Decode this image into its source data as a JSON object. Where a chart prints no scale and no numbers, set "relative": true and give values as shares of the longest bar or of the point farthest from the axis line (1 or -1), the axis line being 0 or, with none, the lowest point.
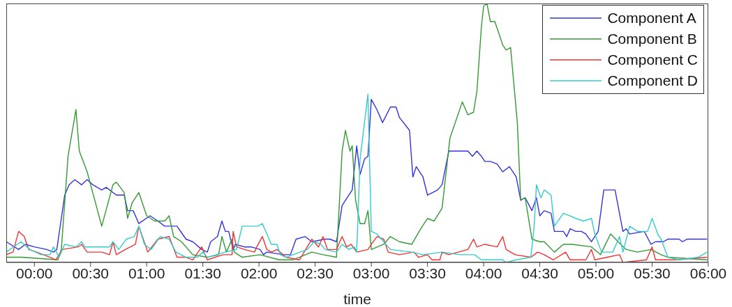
{
  "chart_data": {
    "type": "line",
    "relative": true,
    "xlabel": "time",
    "legend": "top right",
    "xlim": [
      -0.25,
      6
    ],
    "xticks": [
      {
        "value": 0,
        "label": "00:00"
      },
      {
        "value": 0.5,
        "label": "00:30"
      },
      {
        "value": 1,
        "label": "01:00"
      },
      {
        "value": 1.5,
        "label": "01:30"
      },
      {
        "value": 2,
        "label": "02:00"
      },
      {
        "value": 2.5,
        "label": "02:30"
      },
      {
        "value": 3,
        "label": "03:00"
      },
      {
        "value": 3.5,
        "label": "03:30"
      },
      {
        "value": 4,
        "label": "04:00"
      },
      {
        "value": 4.5,
        "label": "04:30"
      },
      {
        "value": 5,
        "label": "05:00"
      },
      {
        "value": 5.5,
        "label": "05:30"
      },
      {
        "value": 6,
        "label": "06:00"
      }
    ],
    "series": [
      {
        "name": "Component A",
        "color": "#3333dd",
        "x": [
          -0.25,
          -0.14,
          -0.08,
          0,
          0.11,
          0.17,
          0.2,
          0.27,
          0.31,
          0.36,
          0.42,
          0.47,
          0.52,
          0.6,
          0.64,
          0.73,
          0.8,
          0.83,
          0.88,
          0.93,
          1.03,
          1.1,
          1.16,
          1.23,
          1.27,
          1.35,
          1.41,
          1.49,
          1.54,
          1.57,
          1.63,
          1.67,
          1.7,
          1.73,
          1.77,
          1.79,
          1.87,
          1.93,
          2.01,
          2.04,
          2.07,
          2.22,
          2.28,
          2.33,
          2.41,
          2.47,
          2.59,
          2.63,
          2.69,
          2.74,
          2.83,
          2.87,
          2.9,
          2.94,
          2.97,
          3.0,
          3.05,
          3.1,
          3.17,
          3.22,
          3.25,
          3.34,
          3.37,
          3.4,
          3.46,
          3.5,
          3.59,
          3.63,
          3.69,
          3.77,
          3.86,
          3.9,
          3.94,
          3.98,
          4.01,
          4.06,
          4.12,
          4.17,
          4.23,
          4.29,
          4.33,
          4.37,
          4.43,
          4.47,
          4.5,
          4.54,
          4.6,
          4.63,
          4.71,
          4.74,
          4.77,
          4.82,
          4.87,
          4.91,
          4.96,
          5.02,
          5.07,
          5.17,
          5.24,
          5.27,
          5.3,
          5.43,
          5.49,
          5.53,
          5.6,
          5.64,
          5.74,
          5.77,
          5.81,
          5.99
        ],
        "values": [
          0.08,
          0.05,
          0.07,
          0.06,
          0.05,
          0.04,
          0.05,
          0.26,
          0.3,
          0.32,
          0.3,
          0.32,
          0.3,
          0.28,
          0.29,
          0.26,
          0.26,
          0.2,
          0.2,
          0.15,
          0.18,
          0.16,
          0.14,
          0.14,
          0.14,
          0.09,
          0.08,
          0.05,
          0.04,
          0.08,
          0.1,
          0.16,
          0.12,
          0.12,
          0.05,
          0.07,
          0.06,
          0.06,
          0.05,
          0.03,
          0.04,
          0.03,
          0.03,
          0.09,
          0.1,
          0.08,
          0.09,
          0.09,
          0.08,
          0.22,
          0.28,
          0.45,
          0.34,
          0.4,
          0.41,
          0.63,
          0.59,
          0.54,
          0.6,
          0.6,
          0.56,
          0.51,
          0.33,
          0.37,
          0.33,
          0.26,
          0.28,
          0.3,
          0.43,
          0.43,
          0.43,
          0.41,
          0.43,
          0.41,
          0.39,
          0.39,
          0.38,
          0.35,
          0.37,
          0.33,
          0.24,
          0.25,
          0.2,
          0.25,
          0.18,
          0.2,
          0.19,
          0.12,
          0.12,
          0.1,
          0.13,
          0.12,
          0.12,
          0.11,
          0.08,
          0.12,
          0.28,
          0.28,
          0.12,
          0.13,
          0.11,
          0.12,
          0.07,
          0.08,
          0.08,
          0.09,
          0.09,
          0.08,
          0.09,
          0.09
        ]
      },
      {
        "name": "Component B",
        "color": "#339933",
        "x": [
          -0.25,
          -0.11,
          0.21,
          0.24,
          0.3,
          0.37,
          0.4,
          0.47,
          0.6,
          0.7,
          0.73,
          0.8,
          0.83,
          0.87,
          0.93,
          1.0,
          1.07,
          1.16,
          1.2,
          1.24,
          1.31,
          1.41,
          1.54,
          1.64,
          1.67,
          1.71,
          1.76,
          1.78,
          1.85,
          2.01,
          2.18,
          2.3,
          2.36,
          2.47,
          2.57,
          2.69,
          2.74,
          2.77,
          2.81,
          2.83,
          2.86,
          2.9,
          2.94,
          2.97,
          3.0,
          3.11,
          3.17,
          3.25,
          3.36,
          3.44,
          3.5,
          3.56,
          3.63,
          3.7,
          3.81,
          3.86,
          3.91,
          3.94,
          3.98,
          4.0,
          4.03,
          4.06,
          4.1,
          4.17,
          4.2,
          4.24,
          4.3,
          4.33,
          4.37,
          4.43,
          4.5,
          4.54,
          4.63,
          4.71,
          4.79,
          4.96,
          5.04,
          5.13,
          5.22,
          5.27,
          5.37,
          5.49,
          5.58,
          5.64,
          5.99
        ],
        "values": [
          0.02,
          0.02,
          0.01,
          0.05,
          0.41,
          0.59,
          0.43,
          0.35,
          0.14,
          0.3,
          0.31,
          0.27,
          0.17,
          0.23,
          0.27,
          0.18,
          0.16,
          0.16,
          0.18,
          0.1,
          0.08,
          0.03,
          0.02,
          0.03,
          0.1,
          0.04,
          0.09,
          0.04,
          0.02,
          0.03,
          0.01,
          0.01,
          0.02,
          0.04,
          0.03,
          0.02,
          0.43,
          0.51,
          0.43,
          0.45,
          0.24,
          0.15,
          0.15,
          0.2,
          0.05,
          0.07,
          0.1,
          0.08,
          0.07,
          0.13,
          0.17,
          0.16,
          0.21,
          0.48,
          0.62,
          0.57,
          0.58,
          0.66,
          0.91,
          0.99,
          1,
          0.93,
          0.93,
          0.84,
          0.82,
          0.83,
          0.54,
          0.24,
          0.25,
          0.09,
          0.08,
          0.08,
          0.04,
          0.07,
          0.07,
          0.06,
          0.03,
          0.11,
          0.07,
          0.05,
          0.04,
          0.05,
          0.03,
          0.02,
          0.01
        ]
      },
      {
        "name": "Component C",
        "color": "#ee3333",
        "x": [
          -0.25,
          -0.19,
          -0.14,
          -0.09,
          -0.05,
          0.02,
          0.14,
          0.19,
          0.25,
          0.39,
          0.42,
          0.47,
          0.6,
          0.67,
          0.7,
          0.73,
          0.81,
          0.9,
          0.93,
          1.01,
          1.1,
          1.2,
          1.27,
          1.35,
          1.41,
          1.49,
          1.54,
          1.68,
          1.76,
          1.77,
          1.8,
          1.87,
          1.96,
          1.98,
          2.03,
          2.07,
          2.11,
          2.16,
          2.24,
          2.36,
          2.47,
          2.53,
          2.57,
          2.61,
          2.69,
          2.74,
          2.78,
          2.82,
          2.87,
          2.97,
          3.0,
          3.05,
          3.11,
          3.15,
          3.25,
          3.38,
          3.42,
          3.5,
          3.54,
          3.61,
          3.63,
          3.69,
          3.86,
          3.91,
          3.94,
          4.01,
          4.12,
          4.17,
          4.2,
          4.28,
          4.42,
          4.48,
          4.54,
          4.62,
          4.73,
          4.77,
          4.91,
          4.96,
          4.99,
          5.1,
          5.21,
          5.24,
          5.45,
          5.5,
          5.53,
          5.7,
          5.99
        ],
        "values": [
          0.03,
          0.04,
          0.12,
          0.1,
          0.05,
          0.04,
          0.02,
          0.01,
          0.05,
          0.06,
          0.07,
          0.04,
          0.04,
          0.03,
          0.08,
          0.03,
          0.05,
          0.07,
          0.14,
          0.04,
          0.09,
          0.1,
          0.02,
          0.02,
          0.01,
          0.06,
          0.01,
          0.03,
          0.03,
          0.12,
          0.06,
          0.05,
          0.04,
          0.06,
          0.1,
          0.05,
          0.04,
          0.05,
          0.02,
          0.01,
          0.09,
          0.06,
          0.1,
          0.05,
          0.05,
          0.1,
          0.06,
          0.07,
          0.04,
          0.05,
          0.07,
          0.1,
          0.09,
          0.04,
          0.03,
          0.04,
          0.02,
          0.03,
          0.01,
          0.01,
          0.04,
          0.03,
          0.05,
          0.09,
          0.06,
          0.07,
          0.06,
          0.1,
          0.05,
          0.03,
          0.02,
          0.04,
          0.03,
          0.01,
          0.04,
          0.01,
          0.01,
          0.05,
          0.01,
          0.02,
          0.03,
          0,
          0.01,
          0.06,
          0.01,
          0.01,
          0.02
        ]
      },
      {
        "name": "Component D",
        "color": "#33cccc",
        "x": [
          -0.25,
          -0.12,
          -0.04,
          0.06,
          0.14,
          0.17,
          0.22,
          0.27,
          0.37,
          0.42,
          0.45,
          0.67,
          0.7,
          0.75,
          0.82,
          0.89,
          0.93,
          0.98,
          1.04,
          1.12,
          1.2,
          1.26,
          1.35,
          1.45,
          1.5,
          1.54,
          1.7,
          1.8,
          1.85,
          1.93,
          1.99,
          2.03,
          2.11,
          2.16,
          2.19,
          2.24,
          2.43,
          2.49,
          2.55,
          2.59,
          2.69,
          2.74,
          2.8,
          2.85,
          2.87,
          2.9,
          2.97,
          3.0,
          3.05,
          3.11,
          3.17,
          3.36,
          3.46,
          3.63,
          3.79,
          3.92,
          3.98,
          4.17,
          4.2,
          4.29,
          4.42,
          4.45,
          4.47,
          4.51,
          4.54,
          4.6,
          4.63,
          4.71,
          4.77,
          4.82,
          4.89,
          4.96,
          4.99,
          5.05,
          5.15,
          5.21,
          5.24,
          5.3,
          5.37,
          5.46,
          5.5,
          5.55,
          5.58,
          5.64,
          5.74,
          5.91,
          5.99
        ],
        "values": [
          0.04,
          0.08,
          0.05,
          0.03,
          0.03,
          0.06,
          0.02,
          0.07,
          0.06,
          0.08,
          0.06,
          0.06,
          0.08,
          0.05,
          0.09,
          0.1,
          0.14,
          0.07,
          0.05,
          0.1,
          0.09,
          0.04,
          0.02,
          0.02,
          0.04,
          0.02,
          0.04,
          0.05,
          0.14,
          0.14,
          0.14,
          0.15,
          0.07,
          0.07,
          0.03,
          0.02,
          0.05,
          0.08,
          0.07,
          0.05,
          0.04,
          0.07,
          0.05,
          0.06,
          0.04,
          0.4,
          0.65,
          0.12,
          0.11,
          0.08,
          0.05,
          0.04,
          0.03,
          0.04,
          0.03,
          0.03,
          0.01,
          0.01,
          0,
          0.01,
          0.02,
          0.14,
          0.3,
          0.25,
          0.28,
          0.26,
          0.14,
          0.19,
          0.18,
          0.17,
          0.16,
          0.17,
          0.11,
          0.04,
          0.04,
          0.1,
          0.04,
          0.14,
          0.12,
          0.12,
          0.17,
          0.11,
          0.09,
          0.02,
          0.01,
          0.02,
          0.04
        ]
      }
    ]
  }
}
